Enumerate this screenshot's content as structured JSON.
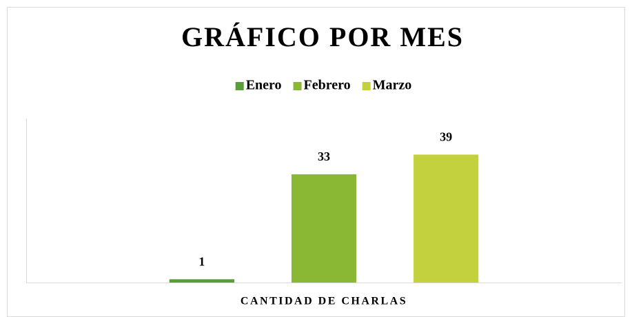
{
  "chart_data": {
    "type": "bar",
    "title": "GRÁFICO POR MES",
    "categories": [
      "CANTIDAD DE CHARLAS"
    ],
    "series": [
      {
        "name": "Enero",
        "color": "#5a9e3a",
        "values": [
          1
        ]
      },
      {
        "name": "Febrero",
        "color": "#8ab734",
        "values": [
          33
        ]
      },
      {
        "name": "Marzo",
        "color": "#c4d13e",
        "values": [
          39
        ]
      }
    ],
    "ylim": [
      0,
      50
    ],
    "legend": "top"
  }
}
